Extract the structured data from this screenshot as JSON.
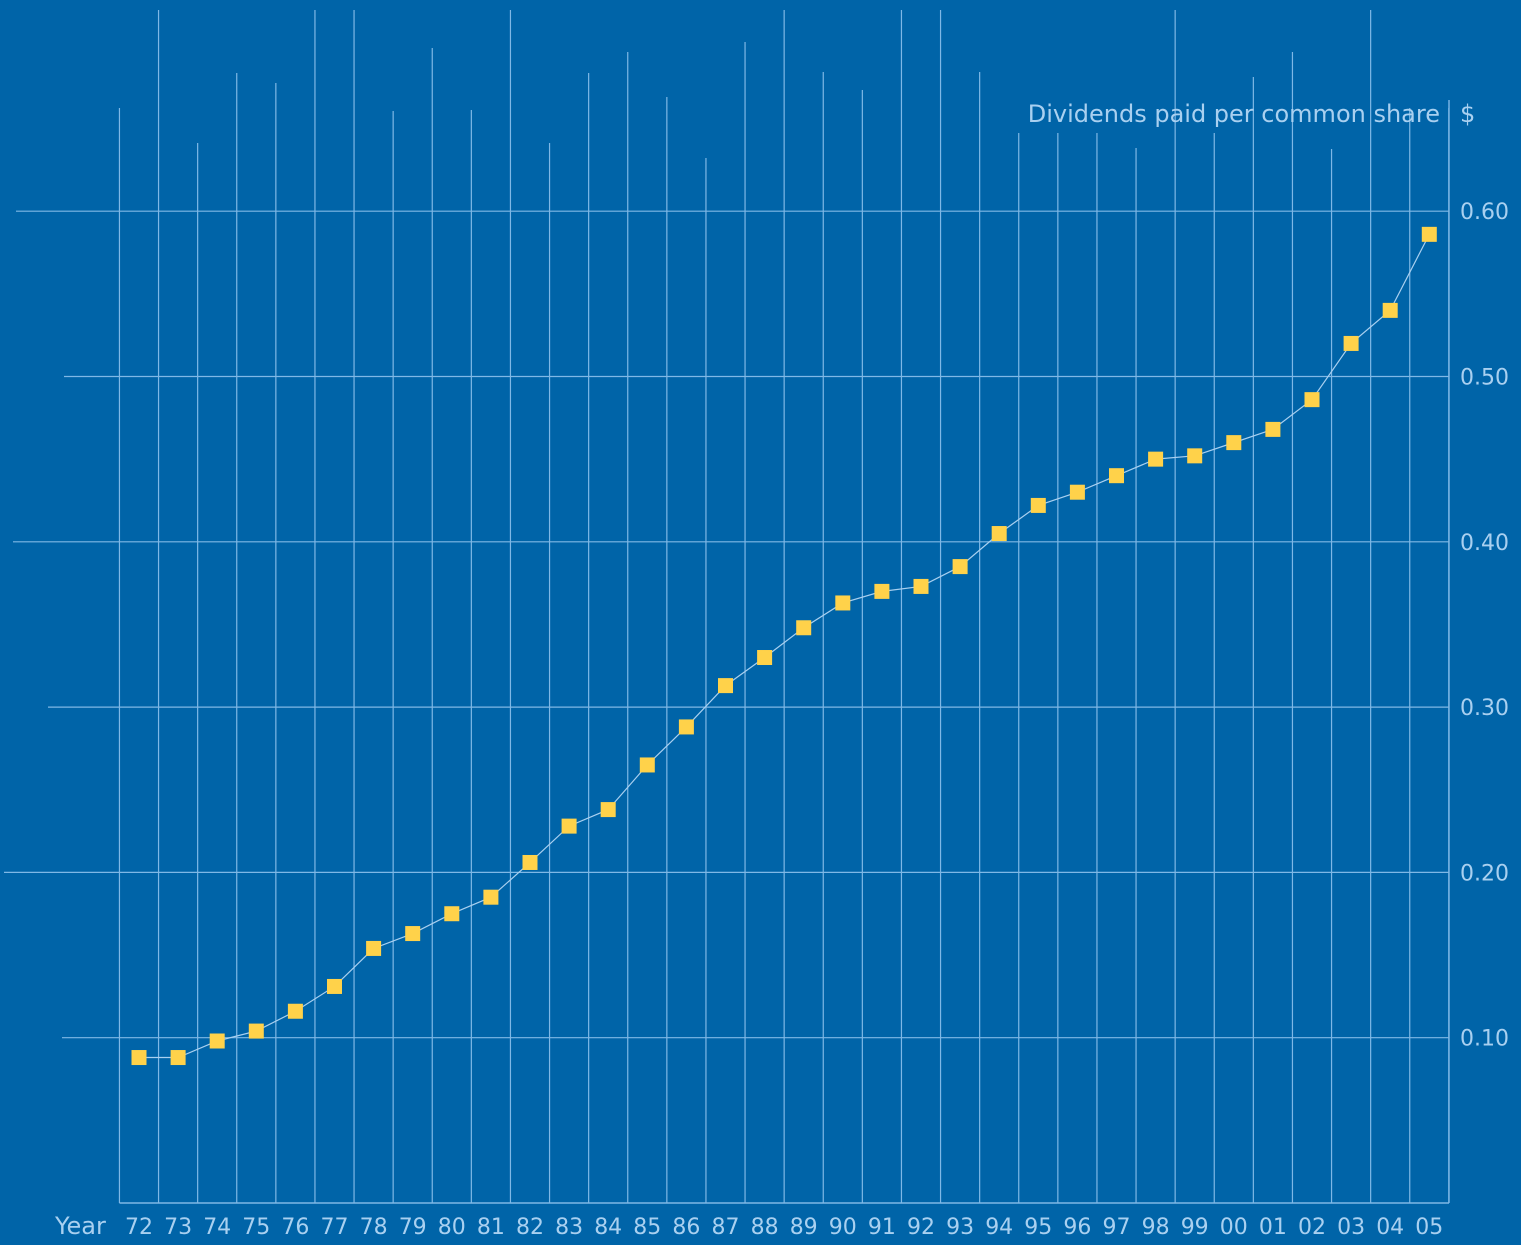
{
  "colors": {
    "background": "#0064a8",
    "grid": "#7fb8e6",
    "axis_text": "#a9d0f0",
    "line": "#a9d0f0",
    "marker": "#ffd24a"
  },
  "chart_data": {
    "type": "line",
    "title": "Dividends paid per common share",
    "xlabel": "Year",
    "ylabel": "$",
    "categories": [
      "72",
      "73",
      "74",
      "75",
      "76",
      "77",
      "78",
      "79",
      "80",
      "81",
      "82",
      "83",
      "84",
      "85",
      "86",
      "87",
      "88",
      "89",
      "90",
      "91",
      "92",
      "93",
      "94",
      "95",
      "96",
      "97",
      "98",
      "99",
      "00",
      "01",
      "02",
      "03",
      "04",
      "05"
    ],
    "values": [
      0.088,
      0.088,
      0.098,
      0.104,
      0.116,
      0.131,
      0.154,
      0.163,
      0.175,
      0.185,
      0.206,
      0.228,
      0.238,
      0.265,
      0.288,
      0.313,
      0.33,
      0.348,
      0.363,
      0.37,
      0.373,
      0.385,
      0.405,
      0.422,
      0.43,
      0.44,
      0.45,
      0.452,
      0.46,
      0.468,
      0.486,
      0.52,
      0.54,
      0.586
    ],
    "yticks": [
      "0.10",
      "0.20",
      "0.30",
      "0.40",
      "0.50",
      "0.60"
    ],
    "ylim": [
      0,
      0.7
    ],
    "grid": true,
    "y_axis_position": "right",
    "marker": "square"
  }
}
